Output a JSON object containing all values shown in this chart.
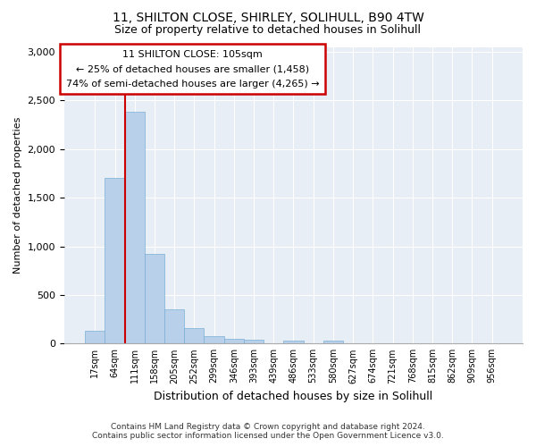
{
  "title_line1": "11, SHILTON CLOSE, SHIRLEY, SOLIHULL, B90 4TW",
  "title_line2": "Size of property relative to detached houses in Solihull",
  "xlabel": "Distribution of detached houses by size in Solihull",
  "ylabel": "Number of detached properties",
  "footer_line1": "Contains HM Land Registry data © Crown copyright and database right 2024.",
  "footer_line2": "Contains public sector information licensed under the Open Government Licence v3.0.",
  "annotation_line1": "11 SHILTON CLOSE: 105sqm",
  "annotation_line2": "← 25% of detached houses are smaller (1,458)",
  "annotation_line3": "74% of semi-detached houses are larger (4,265) →",
  "bar_labels": [
    "17sqm",
    "64sqm",
    "111sqm",
    "158sqm",
    "205sqm",
    "252sqm",
    "299sqm",
    "346sqm",
    "393sqm",
    "439sqm",
    "486sqm",
    "533sqm",
    "580sqm",
    "627sqm",
    "674sqm",
    "721sqm",
    "768sqm",
    "815sqm",
    "862sqm",
    "909sqm",
    "956sqm"
  ],
  "bar_values": [
    130,
    1700,
    2380,
    920,
    350,
    160,
    80,
    50,
    35,
    0,
    30,
    0,
    30,
    0,
    0,
    0,
    0,
    0,
    0,
    0,
    0
  ],
  "bar_color": "#b8d0ea",
  "bar_edge_color": "#7aafd4",
  "vline_x_idx": 2,
  "vline_color": "#cc0000",
  "ylim": [
    0,
    3050
  ],
  "yticks": [
    0,
    500,
    1000,
    1500,
    2000,
    2500,
    3000
  ],
  "annotation_box_color": "#cc0000",
  "annotation_fill_color": "#ffffff",
  "fig_bg_color": "#ffffff",
  "plot_bg_color": "#e8eef5"
}
